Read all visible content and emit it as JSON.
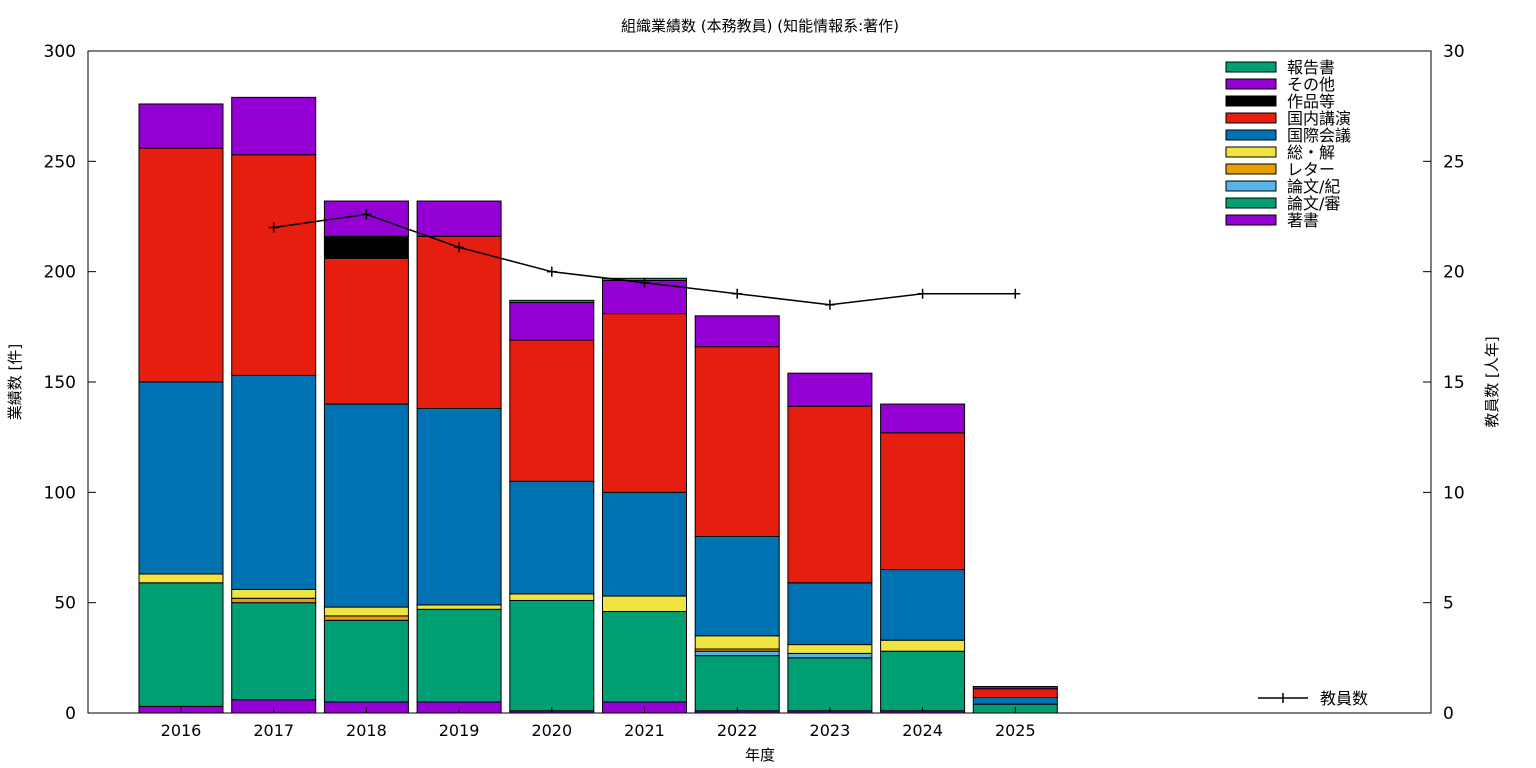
{
  "chart_data": {
    "type": "bar",
    "title": "組織業績数 (本務教員) (知能情報系:著作)",
    "xlabel": "年度",
    "ylabel": "業績数 [件]",
    "y2label": "教員数 [人年]",
    "ylim": [
      0,
      300
    ],
    "y2lim": [
      0,
      30
    ],
    "yticks": [
      0,
      50,
      100,
      150,
      200,
      250,
      300
    ],
    "y2ticks": [
      0,
      5,
      10,
      15,
      20,
      25,
      30
    ],
    "grid": false,
    "legend_position": "top-right",
    "categories": [
      "2016",
      "2017",
      "2018",
      "2019",
      "2020",
      "2021",
      "2022",
      "2023",
      "2024",
      "2025"
    ],
    "stacked_series": [
      {
        "name": "著書",
        "color": "#9400d3",
        "values": [
          3,
          6,
          5,
          5,
          1,
          5,
          1,
          1,
          1,
          0
        ]
      },
      {
        "name": "論文/審",
        "color": "#009e73",
        "values": [
          56,
          44,
          37,
          42,
          50,
          41,
          25,
          24,
          27,
          4
        ]
      },
      {
        "name": "論文/紀",
        "color": "#56b4e9",
        "values": [
          0,
          0,
          0,
          0,
          0,
          0,
          2,
          2,
          0,
          0
        ]
      },
      {
        "name": "レター",
        "color": "#e69f00",
        "values": [
          0,
          2,
          2,
          0,
          0,
          0,
          1,
          0,
          0,
          0
        ]
      },
      {
        "name": "総・解",
        "color": "#f0e442",
        "values": [
          4,
          4,
          4,
          2,
          3,
          7,
          6,
          4,
          5,
          0
        ]
      },
      {
        "name": "国際会議",
        "color": "#0072b2",
        "values": [
          87,
          97,
          92,
          89,
          51,
          47,
          45,
          28,
          32,
          3
        ]
      },
      {
        "name": "国内講演",
        "color": "#e51e10",
        "values": [
          106,
          100,
          66,
          78,
          64,
          81,
          86,
          80,
          62,
          4
        ]
      },
      {
        "name": "作品等",
        "color": "#000000",
        "values": [
          0,
          0,
          10,
          0,
          0,
          0,
          0,
          0,
          0,
          0
        ]
      },
      {
        "name": "その他",
        "color": "#9400d3",
        "values": [
          20,
          26,
          16,
          16,
          17,
          15,
          14,
          15,
          13,
          1
        ]
      },
      {
        "name": "報告書",
        "color": "#009e73",
        "values": [
          0,
          0,
          0,
          0,
          1,
          1,
          0,
          0,
          0,
          0
        ]
      }
    ],
    "line_series": {
      "name": "教員数",
      "color": "#000000",
      "axis": "right",
      "values": [
        null,
        22.0,
        22.6,
        21.1,
        20.0,
        19.5,
        19.0,
        18.5,
        19.0,
        19.0
      ]
    },
    "legend_order": [
      "報告書",
      "その他",
      "作品等",
      "国内講演",
      "国際会議",
      "総・解",
      "レター",
      "論文/紀",
      "論文/審",
      "著書"
    ]
  }
}
